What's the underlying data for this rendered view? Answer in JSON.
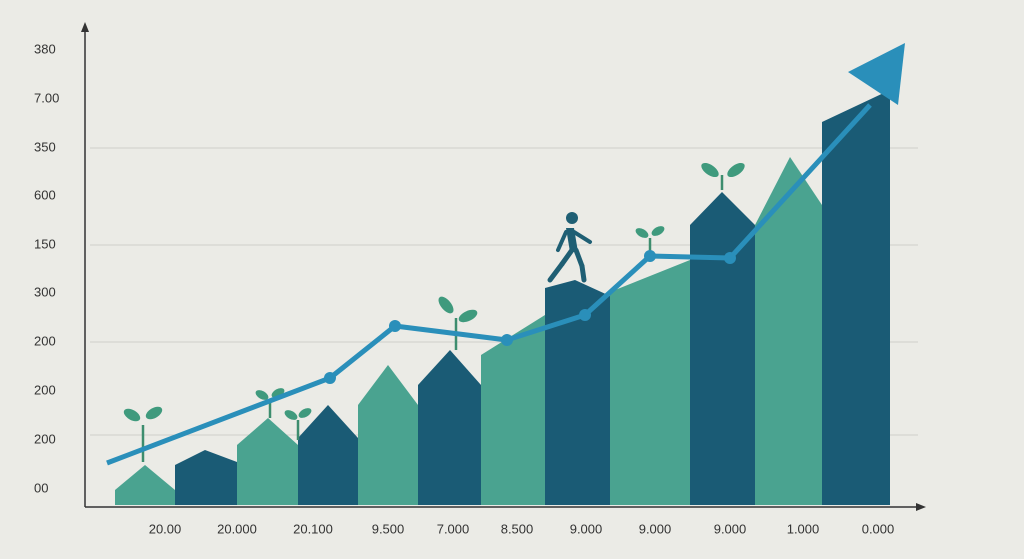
{
  "y_labels": [
    "380",
    "7.00",
    "350",
    "600",
    "150",
    "300",
    "200",
    "200",
    "200",
    "00"
  ],
  "x_labels": [
    "20.00",
    "20.000",
    "20.100",
    "9.500",
    "7.000",
    "8.500",
    "9.000",
    "9.000",
    "9.000",
    "1.000",
    "0.000"
  ]
}
